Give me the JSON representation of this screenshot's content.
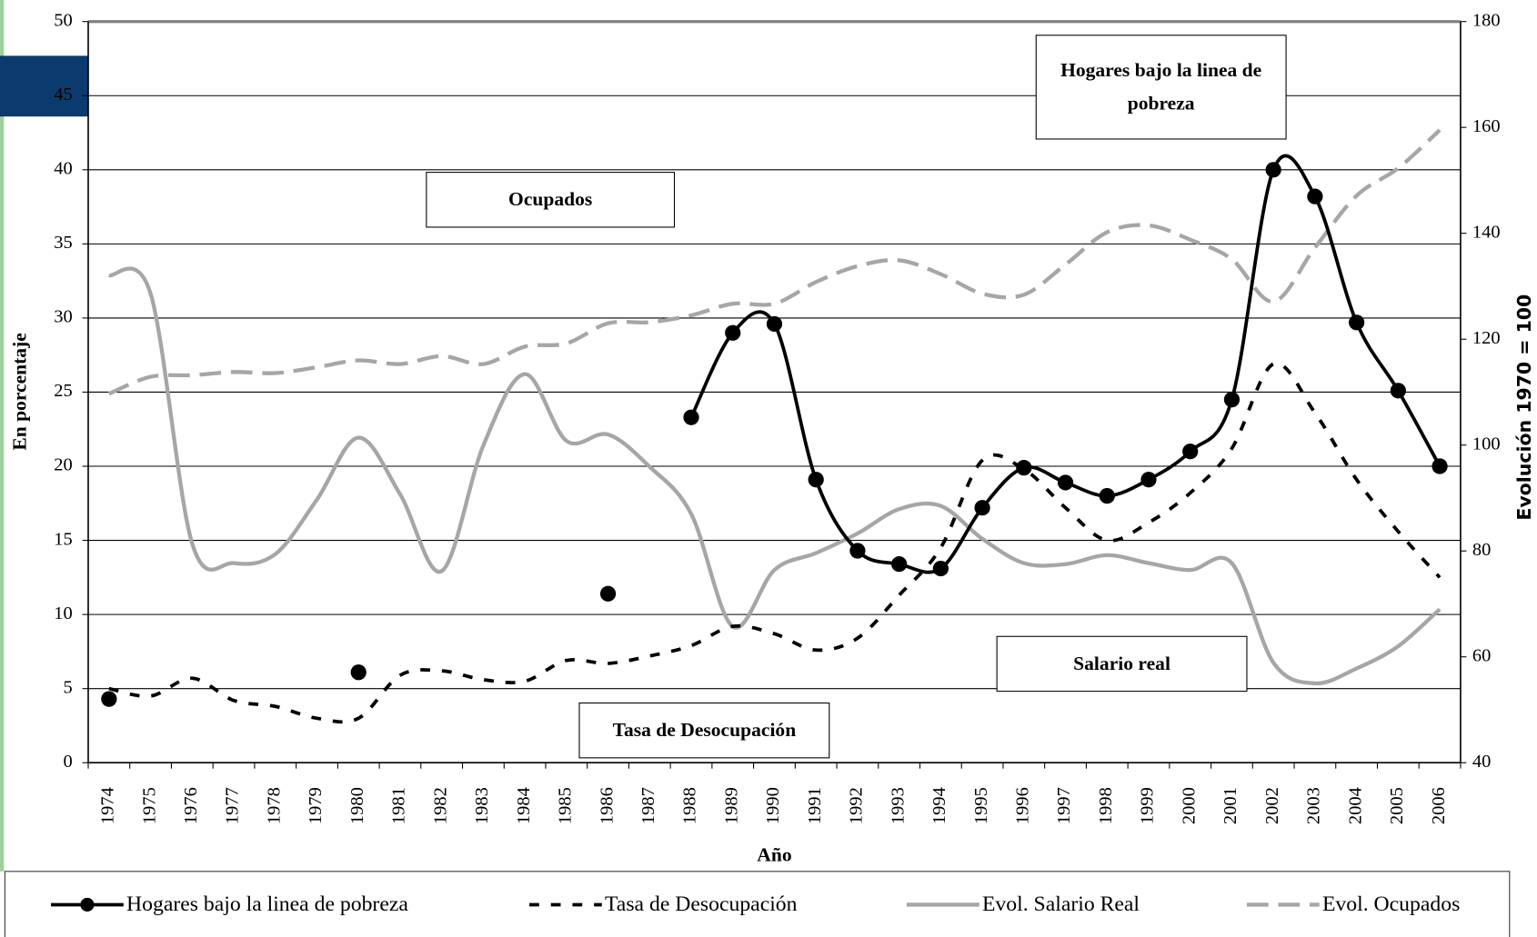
{
  "chart_data": {
    "type": "line",
    "categories": [
      "1974",
      "1975",
      "1976",
      "1977",
      "1978",
      "1979",
      "1980",
      "1981",
      "1982",
      "1983",
      "1984",
      "1985",
      "1986",
      "1987",
      "1988",
      "1989",
      "1990",
      "1991",
      "1992",
      "1993",
      "1994",
      "1995",
      "1996",
      "1997",
      "1998",
      "1999",
      "2000",
      "2001",
      "2002",
      "2003",
      "2004",
      "2005",
      "2006"
    ],
    "x_label": "Año",
    "y_label": "En porcentaje",
    "y2_label": "Evolución 1970 = 100",
    "ylim": [
      0,
      50
    ],
    "yticks": [
      0,
      5,
      10,
      15,
      20,
      25,
      30,
      35,
      40,
      45,
      50
    ],
    "y2lim": [
      40,
      180
    ],
    "y2ticks": [
      40,
      60,
      80,
      100,
      120,
      140,
      160,
      180
    ],
    "grid": true,
    "legend": "bottom",
    "annotations": [
      "Hogares bajo la linea de pobreza",
      "Ocupados",
      "Salario real",
      "Tasa de Desocupación"
    ],
    "series": [
      {
        "name": "Hogares bajo la linea de pobreza",
        "color": "#000000",
        "line_style": "solid",
        "marker": "circle",
        "values": [
          4.3,
          null,
          null,
          null,
          null,
          null,
          6.1,
          null,
          null,
          null,
          null,
          null,
          11.4,
          null,
          23.3,
          29.0,
          29.6,
          19.1,
          14.3,
          13.4,
          13.1,
          17.2,
          19.9,
          18.9,
          18.0,
          19.1,
          21.0,
          24.5,
          40.0,
          38.2,
          29.7,
          25.1,
          20.0
        ]
      },
      {
        "name": "Tasa de Desocupación",
        "color": "#000000",
        "line_style": "dashed",
        "values": [
          5.0,
          4.5,
          5.7,
          4.2,
          3.8,
          3.0,
          3.0,
          5.9,
          6.2,
          5.6,
          5.5,
          6.9,
          6.7,
          7.2,
          7.9,
          9.2,
          8.7,
          7.6,
          8.4,
          11.3,
          14.5,
          20.4,
          19.8,
          17.2,
          15.0,
          16.2,
          18.2,
          21.2,
          26.9,
          23.6,
          19.1,
          15.6,
          12.5
        ]
      },
      {
        "name": "Evol. Salario Real",
        "color": "#a6a6a6",
        "line_style": "solid",
        "axis": "y2",
        "values": [
          132.1,
          128.6,
          81.4,
          77.7,
          79.4,
          89.7,
          101.4,
          90.7,
          76.2,
          99.9,
          113.4,
          100.8,
          102.0,
          95.9,
          87.0,
          65.7,
          76.4,
          79.6,
          83.3,
          87.9,
          88.5,
          82.3,
          77.7,
          77.5,
          79.2,
          77.7,
          76.4,
          77.7,
          58.9,
          55.0,
          57.8,
          62.0,
          69.0
        ]
      },
      {
        "name": "Evol. Ocupados",
        "color": "#a6a6a6",
        "line_style": "dashed",
        "axis": "y2",
        "values": [
          109.7,
          112.9,
          113.2,
          113.8,
          113.6,
          114.7,
          116.0,
          115.3,
          116.8,
          115.3,
          118.6,
          119.2,
          123.0,
          123.2,
          124.5,
          126.7,
          126.7,
          130.8,
          133.8,
          134.9,
          132.3,
          128.6,
          128.4,
          134.1,
          140.2,
          141.5,
          138.8,
          135.1,
          127.1,
          137.3,
          147.1,
          152.3,
          159.5
        ]
      }
    ]
  }
}
